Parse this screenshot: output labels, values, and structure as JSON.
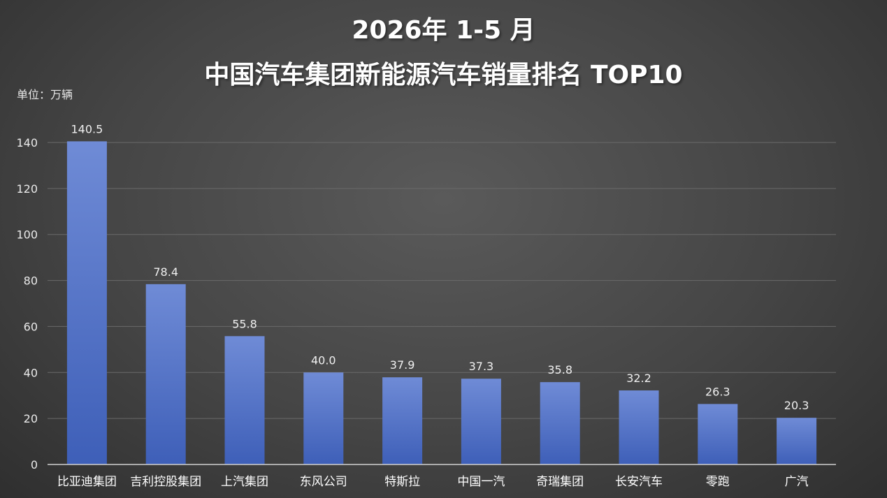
{
  "title_line1": "2026年 1-5 月",
  "title_line2": "中国汽车集团新能源汽车销量排名  TOP10",
  "unit_label": "单位：万辆",
  "colors": {
    "bar_top": "#6f8bd6",
    "bar_bottom": "#3e5fb8",
    "gridline": "#6a6a6a",
    "axis": "#cfcfcf"
  },
  "chart_data": {
    "type": "bar",
    "categories": [
      "比亚迪集团",
      "吉利控股集团",
      "上汽集团",
      "东风公司",
      "特斯拉",
      "中国一汽",
      "奇瑞集团",
      "长安汽车",
      "零跑",
      "广汽"
    ],
    "values": [
      140.5,
      78.4,
      55.8,
      40.0,
      37.9,
      37.3,
      35.8,
      32.2,
      26.3,
      20.3
    ],
    "value_labels": [
      "140.5",
      "78.4",
      "55.8",
      "40.0",
      "37.9",
      "37.3",
      "35.8",
      "32.2",
      "26.3",
      "20.3"
    ],
    "ylim": [
      0,
      140
    ],
    "yticks": [
      0,
      20,
      40,
      60,
      80,
      100,
      120,
      140
    ],
    "grid": true,
    "legend": "none"
  }
}
